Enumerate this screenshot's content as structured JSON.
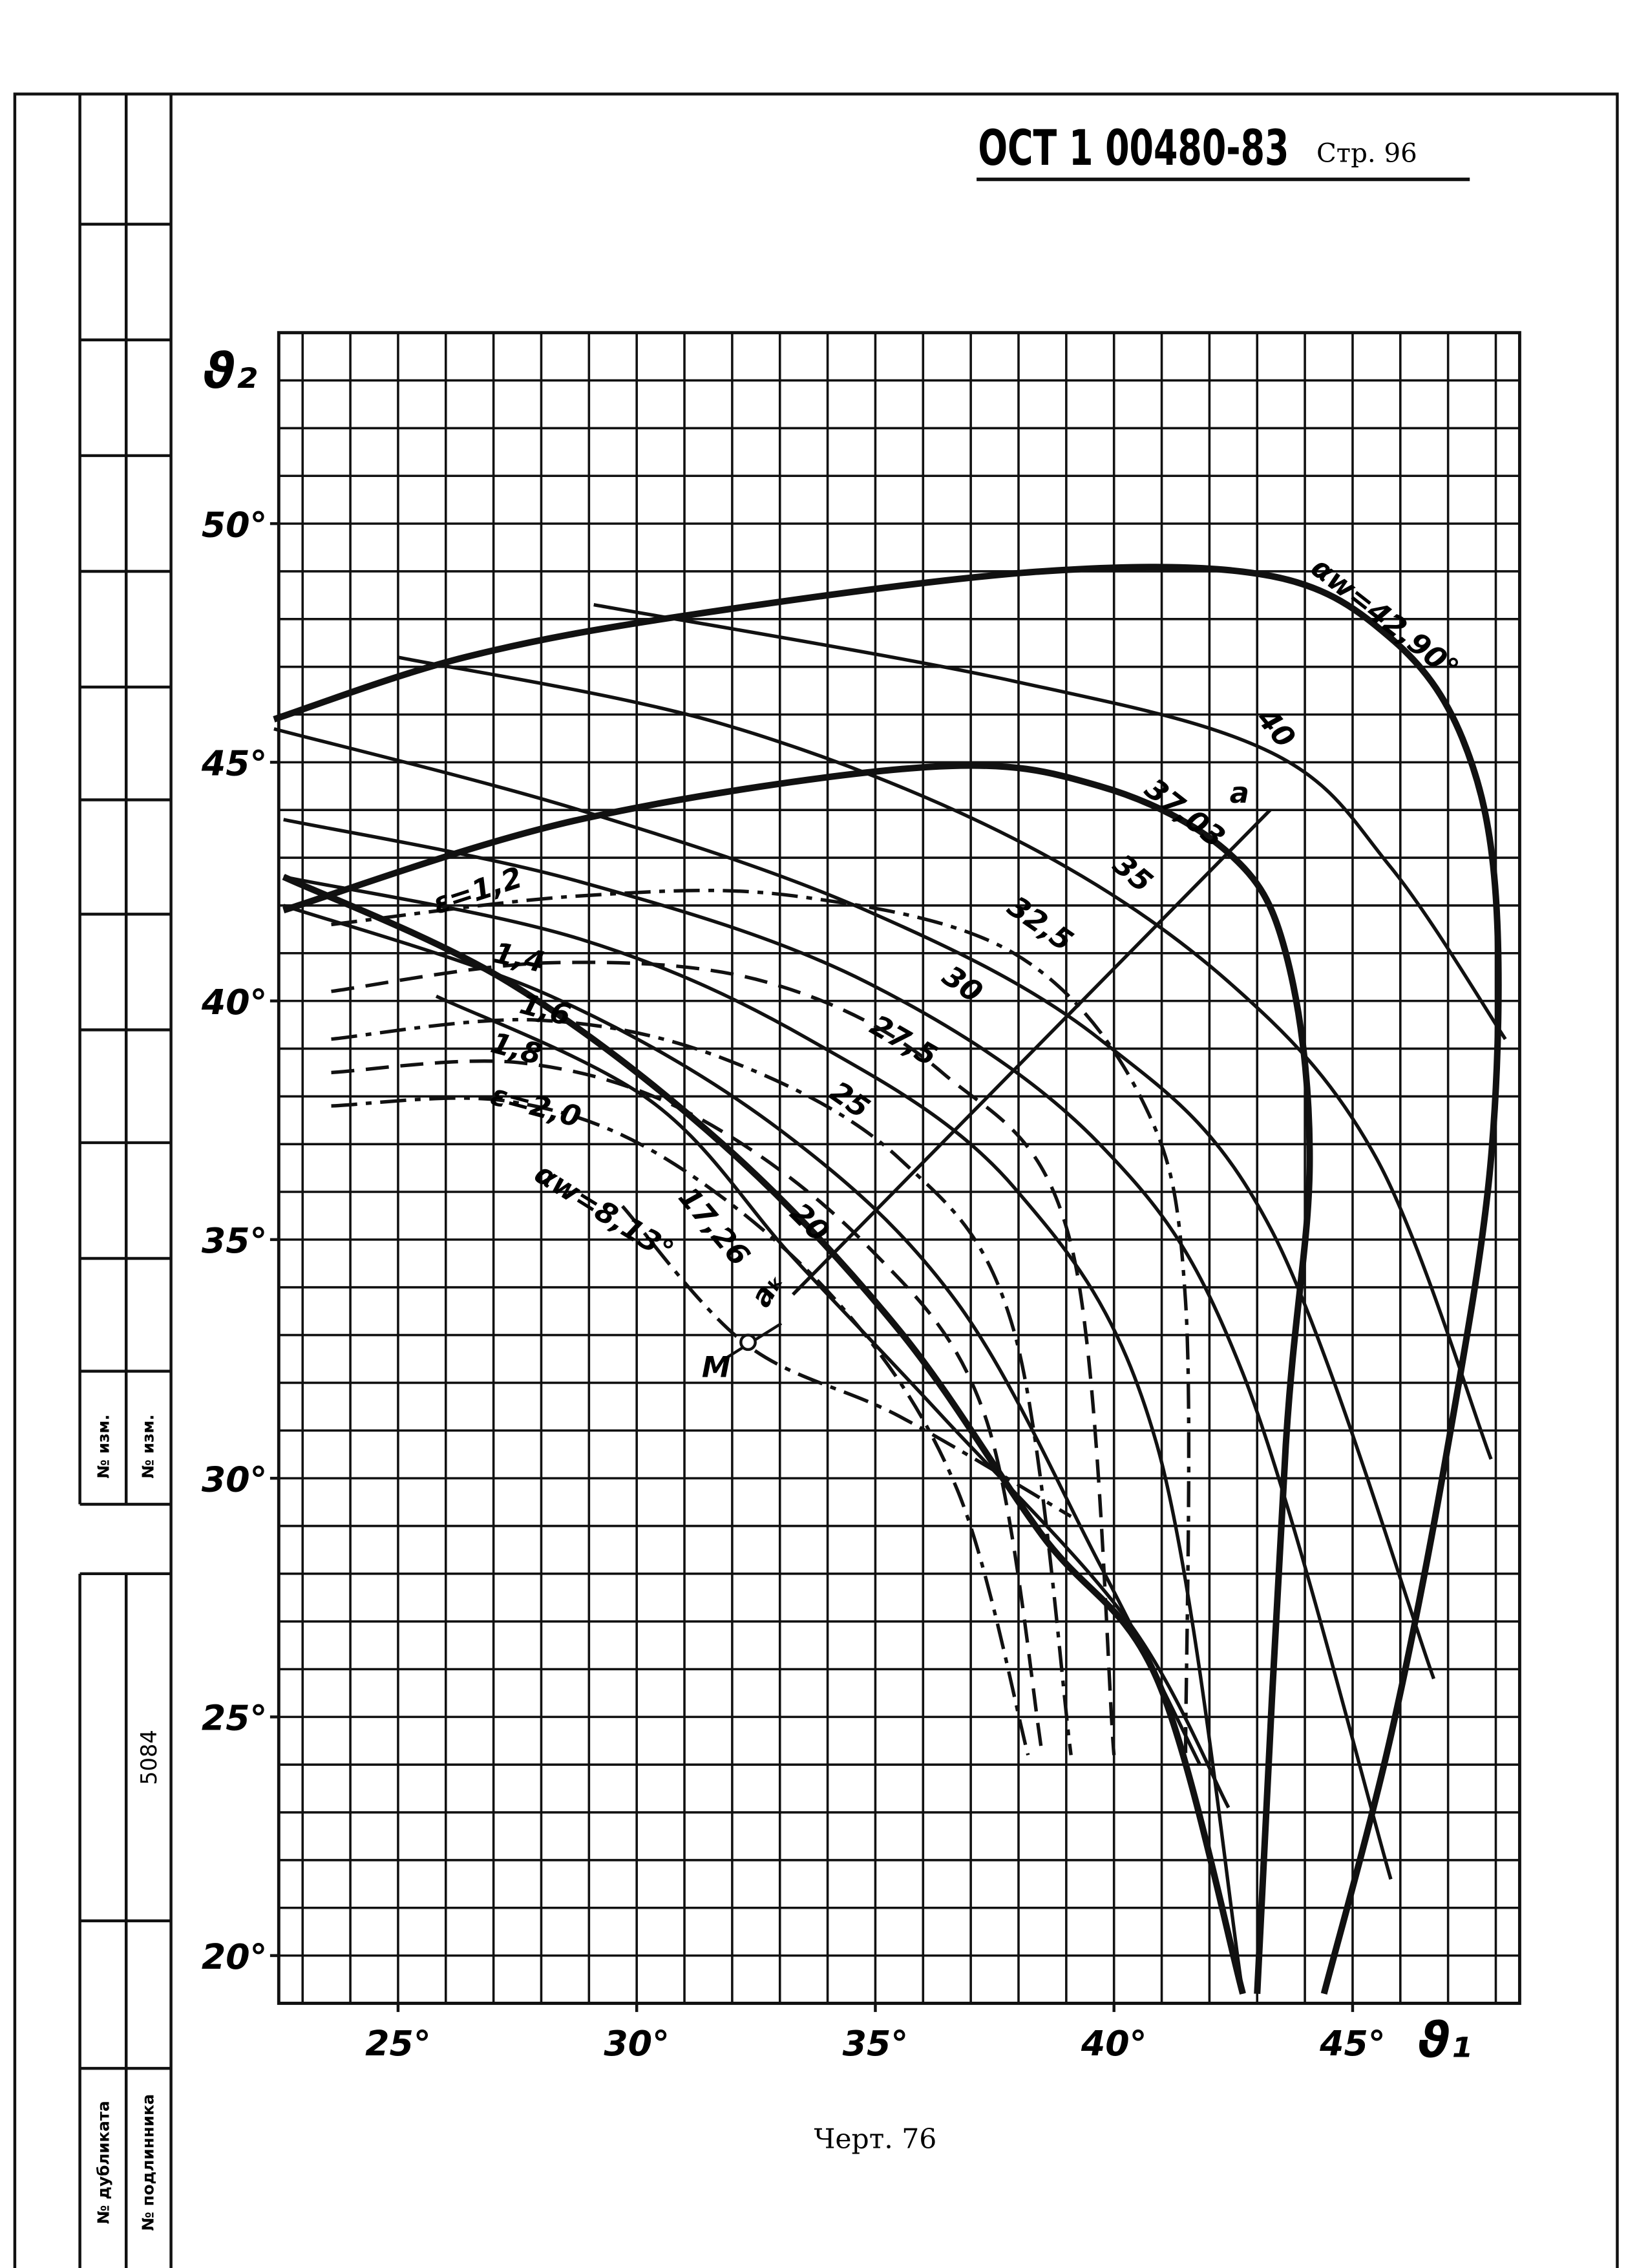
{
  "document": {
    "code": "ОСТ 1 00480-83",
    "page": "Стр. 96",
    "caption": "Черт. 76",
    "stamp": {
      "change_1": "№ изм.",
      "change_2": "№ изм.",
      "number": "5084",
      "duplicate": "№ дубликата",
      "original": "№ подлинника"
    },
    "annotations": {
      "point_m": "M",
      "point_a": "a",
      "point_ak": "aₖ"
    }
  },
  "chart_data": {
    "type": "line",
    "x_label": "ϑ₁",
    "y_label": "ϑ₂",
    "grid": true,
    "xlim": [
      22.5,
      48.5
    ],
    "ylim": [
      19,
      54
    ],
    "xticks": [
      {
        "value": 25,
        "label": "25°"
      },
      {
        "value": 30,
        "label": "30°"
      },
      {
        "value": 35,
        "label": "35°"
      },
      {
        "value": 40,
        "label": "40°"
      },
      {
        "value": 45,
        "label": "45°"
      }
    ],
    "yticks": [
      {
        "value": 20,
        "label": "20°"
      },
      {
        "value": 25,
        "label": "25°"
      },
      {
        "value": 30,
        "label": "30°"
      },
      {
        "value": 35,
        "label": "35°"
      },
      {
        "value": 40,
        "label": "40°"
      },
      {
        "value": 45,
        "label": "45°"
      },
      {
        "value": 50,
        "label": "50°"
      }
    ],
    "series": [
      {
        "name": "αw=42,90°",
        "color": "#111",
        "style": "bold",
        "x": [
          22.4,
          26.4,
          31.2,
          38.5,
          43.3,
          45.8,
          47.3,
          48.0,
          47.9,
          47.0,
          45.8,
          44.4
        ],
        "values": [
          45.9,
          47.2,
          48.1,
          49.0,
          48.9,
          47.6,
          45.5,
          42.2,
          36.7,
          30.7,
          24.6,
          19.2
        ]
      },
      {
        "name": "40",
        "color": "#111",
        "style": "solid",
        "x": [
          29.1,
          37.9,
          43.3,
          45.8,
          48.2
        ],
        "values": [
          48.3,
          46.7,
          45.2,
          42.8,
          39.2
        ]
      },
      {
        "name": "37,03",
        "color": "#111",
        "style": "bold",
        "x": [
          22.6,
          28.8,
          36.1,
          39.7,
          42.4,
          43.6,
          44.1,
          43.6,
          43.0
        ],
        "values": [
          41.9,
          43.8,
          44.9,
          44.5,
          43.1,
          41.0,
          36.7,
          30.7,
          19.2
        ]
      },
      {
        "name": "35",
        "color": "#111",
        "style": "solid",
        "x": [
          25.0,
          31.8,
          37.9,
          42.4,
          45.5,
          47.9
        ],
        "values": [
          47.2,
          45.8,
          43.4,
          40.4,
          36.7,
          30.4
        ]
      },
      {
        "name": "32,5",
        "color": "#111",
        "style": "solid",
        "x": [
          22.4,
          28.8,
          34.8,
          39.7,
          43.3,
          46.7
        ],
        "values": [
          45.7,
          44.0,
          41.9,
          39.2,
          35.2,
          25.8
        ]
      },
      {
        "name": "30",
        "color": "#111",
        "style": "solid",
        "x": [
          22.6,
          28.8,
          34.8,
          39.7,
          42.7,
          45.8
        ],
        "values": [
          43.8,
          42.5,
          40.4,
          37.0,
          32.2,
          21.6
        ]
      },
      {
        "name": "27,5",
        "color": "#111",
        "style": "solid",
        "x": [
          22.6,
          28.8,
          33.6,
          37.9,
          40.9,
          42.7
        ],
        "values": [
          42.6,
          41.3,
          39.2,
          36.1,
          30.7,
          19.2
        ]
      },
      {
        "name": "25",
        "color": "#111",
        "style": "solid",
        "x": [
          22.6,
          28.2,
          33.0,
          36.7,
          39.7,
          41.8
        ],
        "values": [
          42.0,
          40.1,
          37.3,
          33.7,
          28.2,
          24.0
        ]
      },
      {
        "name": "20",
        "color": "#111",
        "style": "bold",
        "x": [
          22.6,
          27.3,
          31.8,
          35.5,
          38.5,
          40.9,
          42.7
        ],
        "values": [
          42.6,
          40.4,
          37.0,
          33.1,
          28.8,
          25.8,
          19.2
        ]
      },
      {
        "name": "17,26",
        "color": "#111",
        "style": "solid",
        "x": [
          25.8,
          30.3,
          33.3,
          36.4,
          40.3,
          42.4
        ],
        "values": [
          40.1,
          37.9,
          34.6,
          31.3,
          27.0,
          23.1
        ]
      },
      {
        "name": "αw=8,13°",
        "color": "#111",
        "style": "dashdot",
        "x": [
          29.7,
          32.3,
          35.5,
          39.1
        ],
        "values": [
          35.7,
          32.8,
          31.3,
          29.2
        ]
      },
      {
        "name": "ε=1,2",
        "color": "#111",
        "style": "dashdot",
        "x": [
          23.6,
          28.8,
          33.3,
          37.9,
          40.6,
          41.5,
          41.5
        ],
        "values": [
          41.6,
          42.2,
          42.2,
          41.0,
          37.9,
          33.7,
          24.2
        ]
      },
      {
        "name": "1,4",
        "color": "#111",
        "style": "dashed",
        "x": [
          23.6,
          28.2,
          32.7,
          36.4,
          39.1,
          40.0
        ],
        "values": [
          40.2,
          40.8,
          40.4,
          38.5,
          34.9,
          24.2
        ]
      },
      {
        "name": "1,6",
        "color": "#111",
        "style": "dashdot",
        "x": [
          23.6,
          27.9,
          31.8,
          35.5,
          37.9,
          39.1
        ],
        "values": [
          39.2,
          39.6,
          38.8,
          36.7,
          33.1,
          24.2
        ]
      },
      {
        "name": "1,8",
        "color": "#111",
        "style": "dashed",
        "x": [
          23.6,
          27.6,
          31.2,
          34.8,
          37.3,
          38.5
        ],
        "values": [
          38.5,
          38.7,
          37.6,
          34.9,
          31.3,
          24.2
        ]
      },
      {
        "name": "ε=2,0",
        "color": "#111",
        "style": "dashdot",
        "x": [
          23.6,
          27.3,
          30.6,
          34.2,
          36.7,
          38.2
        ],
        "values": [
          37.8,
          37.9,
          36.7,
          33.7,
          29.8,
          24.2
        ]
      }
    ]
  }
}
